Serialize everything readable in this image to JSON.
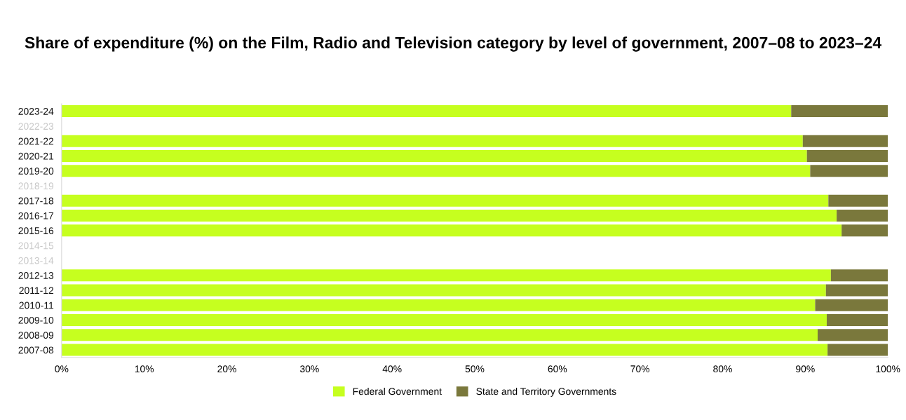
{
  "chart_data": {
    "type": "bar",
    "orientation": "horizontal",
    "stacked": true,
    "title": "Share of expenditure (%) on the Film, Radio and Television category by level of government, 2007–08 to 2023–24",
    "categories": [
      "2023-24",
      "2022-23",
      "2021-22",
      "2020-21",
      "2019-20",
      "2018-19",
      "2017-18",
      "2016-17",
      "2015-16",
      "2014-15",
      "2013-14",
      "2012-13",
      "2011-12",
      "2010-11",
      "2009-10",
      "2008-09",
      "2007-08"
    ],
    "series": [
      {
        "name": "Federal Government",
        "color": "#c6ff1f",
        "values": [
          88.3,
          null,
          89.7,
          90.2,
          90.6,
          null,
          92.8,
          93.8,
          94.4,
          null,
          null,
          93.1,
          92.5,
          91.2,
          92.6,
          91.5,
          92.7
        ]
      },
      {
        "name": "State and Territory Governments",
        "color": "#7a783c",
        "values": [
          11.7,
          null,
          10.3,
          9.8,
          9.4,
          null,
          7.2,
          6.2,
          5.6,
          null,
          null,
          6.9,
          7.5,
          8.8,
          7.4,
          8.5,
          7.3
        ]
      }
    ],
    "xlim": [
      0,
      100
    ],
    "xticks": [
      {
        "value": 0,
        "label": "0%"
      },
      {
        "value": 10,
        "label": "10%"
      },
      {
        "value": 20,
        "label": "20%"
      },
      {
        "value": 30,
        "label": "30%"
      },
      {
        "value": 40,
        "label": "40%"
      },
      {
        "value": 50,
        "label": "50%"
      },
      {
        "value": 60,
        "label": "60%"
      },
      {
        "value": 70,
        "label": "70%"
      },
      {
        "value": 80,
        "label": "80%"
      },
      {
        "value": 90,
        "label": "90%"
      },
      {
        "value": 100,
        "label": "100%"
      }
    ],
    "grid": false,
    "legend": "bottom"
  }
}
